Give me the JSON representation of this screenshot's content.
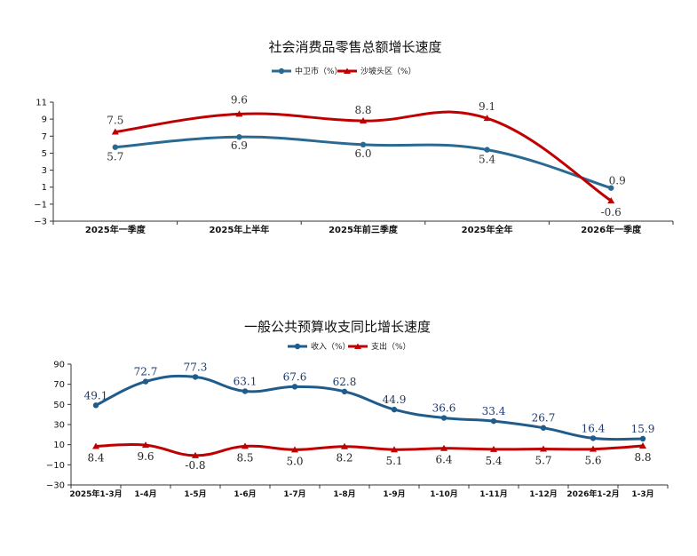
{
  "chart_data": [
    {
      "type": "line",
      "title": "社会消费品零售总额增长速度",
      "categories": [
        "2025年一季度",
        "2025年上半年",
        "2025年前三季度",
        "2025年全年",
        "2026年一季度"
      ],
      "series": [
        {
          "name": "中卫市（%）",
          "color": "#2a6a92",
          "values": [
            5.7,
            6.9,
            6.0,
            5.4,
            0.9
          ]
        },
        {
          "name": "沙坡头区（%）",
          "color": "#c00000",
          "values": [
            7.5,
            9.6,
            8.8,
            9.1,
            -0.6
          ]
        }
      ],
      "ylim": [
        -3,
        11
      ],
      "yticks": [
        -3,
        -1,
        1,
        3,
        5,
        7,
        9,
        11
      ],
      "legend": "top"
    },
    {
      "type": "line",
      "title": "一般公共预算收支同比增长速度",
      "categories": [
        "2025年1-3月",
        "1-4月",
        "1-5月",
        "1-6月",
        "1-7月",
        "1-8月",
        "1-9月",
        "1-10月",
        "1-11月",
        "1-12月",
        "2026年1-2月",
        "1-3月"
      ],
      "series": [
        {
          "name": "收入（%）",
          "color": "#1f5c8c",
          "values": [
            49.1,
            72.7,
            77.3,
            63.1,
            67.6,
            62.8,
            44.9,
            36.6,
            33.4,
            26.7,
            16.4,
            15.9
          ]
        },
        {
          "name": "支出（%）",
          "color": "#c00000",
          "values": [
            8.4,
            9.6,
            -0.8,
            8.5,
            5.0,
            8.2,
            5.1,
            6.4,
            5.4,
            5.7,
            5.6,
            8.8
          ]
        }
      ],
      "ylim": [
        -30,
        90
      ],
      "yticks": [
        -30,
        -10,
        10,
        30,
        50,
        70,
        90
      ],
      "legend": "top"
    }
  ]
}
